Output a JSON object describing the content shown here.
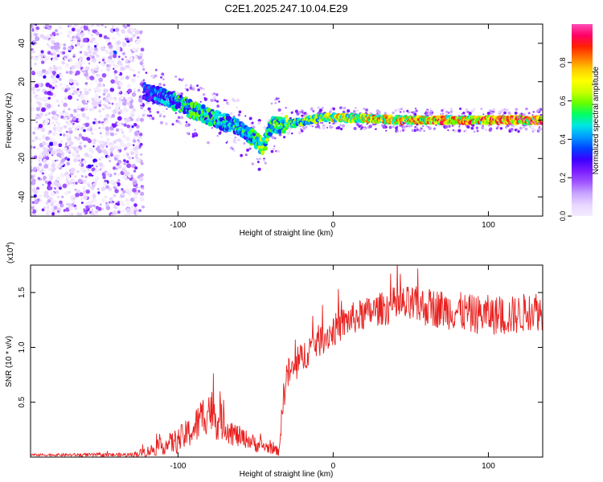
{
  "title": "C2E1.2025.247.10.04.E29",
  "chart_data": [
    {
      "type": "heatmap",
      "xlabel": "Height of straight line (km)",
      "ylabel": "Frequency (Hz)",
      "xlim": [
        -195,
        135
      ],
      "ylim": [
        -50,
        50
      ],
      "xticks": [
        -100,
        0,
        100
      ],
      "yticks": [
        -40,
        -20,
        0,
        20,
        40
      ],
      "colorbar": {
        "label": "Normalized spectral amplitude",
        "range": [
          0,
          1
        ],
        "ticks": [
          0.0,
          0.2,
          0.4,
          0.6,
          0.8
        ],
        "stops": [
          "#f4ecff",
          "#e8d6ff",
          "#c9a4ff",
          "#a056ff",
          "#7a1cff",
          "#3c00ff",
          "#0044ff",
          "#0099ff",
          "#00e5e5",
          "#00ff66",
          "#66ff00",
          "#ccff00",
          "#ffff00",
          "#ffcc00",
          "#ff7700",
          "#ff2200",
          "#ff0066",
          "#ff4db8"
        ]
      },
      "noise_region_x": [
        -195,
        -122
      ],
      "ridge": {
        "x": [
          -122,
          -110,
          -100,
          -90,
          -80,
          -70,
          -60,
          -50,
          -45,
          -40,
          -30,
          -20,
          -10,
          0,
          10,
          20,
          40,
          60,
          80,
          100,
          120,
          135
        ],
        "y": [
          15,
          12,
          9,
          5,
          2,
          -1,
          -4,
          -10,
          -14,
          -3,
          -2,
          -1,
          1,
          1.5,
          1,
          1,
          0,
          0,
          0,
          0,
          0,
          0
        ],
        "amplitude": [
          0.35,
          0.45,
          0.5,
          0.55,
          0.55,
          0.5,
          0.5,
          0.55,
          0.6,
          0.55,
          0.6,
          0.6,
          0.65,
          0.7,
          0.75,
          0.75,
          0.8,
          0.85,
          0.85,
          0.85,
          0.9,
          0.9
        ]
      }
    },
    {
      "type": "line",
      "xlabel": "Height of straight line (km)",
      "ylabel": "SNR (10 * v/v)",
      "scale_label": "(x10",
      "scale_exponent": "4",
      "xlim": [
        -195,
        135
      ],
      "ylim": [
        0,
        1.75
      ],
      "xticks": [
        -100,
        0,
        100
      ],
      "yticks": [
        0.5,
        1.0,
        1.5
      ],
      "series": [
        {
          "name": "SNR",
          "color": "#e8201e",
          "x": [
            -195,
            -130,
            -120,
            -110,
            -100,
            -90,
            -85,
            -80,
            -75,
            -70,
            -65,
            -60,
            -55,
            -50,
            -45,
            -40,
            -35,
            -32,
            -30,
            -25,
            -20,
            -15,
            -10,
            -5,
            0,
            10,
            20,
            30,
            40,
            50,
            60,
            70,
            80,
            90,
            100,
            110,
            120,
            130,
            135
          ],
          "y": [
            0.02,
            0.02,
            0.05,
            0.1,
            0.15,
            0.25,
            0.35,
            0.45,
            0.35,
            0.3,
            0.22,
            0.18,
            0.16,
            0.12,
            0.1,
            0.08,
            0.05,
            0.55,
            0.75,
            0.8,
            0.9,
            1.0,
            1.05,
            1.1,
            1.15,
            1.25,
            1.3,
            1.35,
            1.38,
            1.38,
            1.37,
            1.35,
            1.33,
            1.3,
            1.3,
            1.28,
            1.3,
            1.35,
            1.3
          ],
          "noise": [
            0.01,
            0.02,
            0.05,
            0.08,
            0.12,
            0.15,
            0.2,
            0.22,
            0.2,
            0.15,
            0.12,
            0.1,
            0.08,
            0.08,
            0.06,
            0.05,
            0.04,
            0.15,
            0.15,
            0.15,
            0.15,
            0.15,
            0.15,
            0.15,
            0.15,
            0.15,
            0.15,
            0.15,
            0.18,
            0.18,
            0.18,
            0.18,
            0.18,
            0.18,
            0.18,
            0.18,
            0.18,
            0.18,
            0.18
          ]
        }
      ]
    }
  ]
}
